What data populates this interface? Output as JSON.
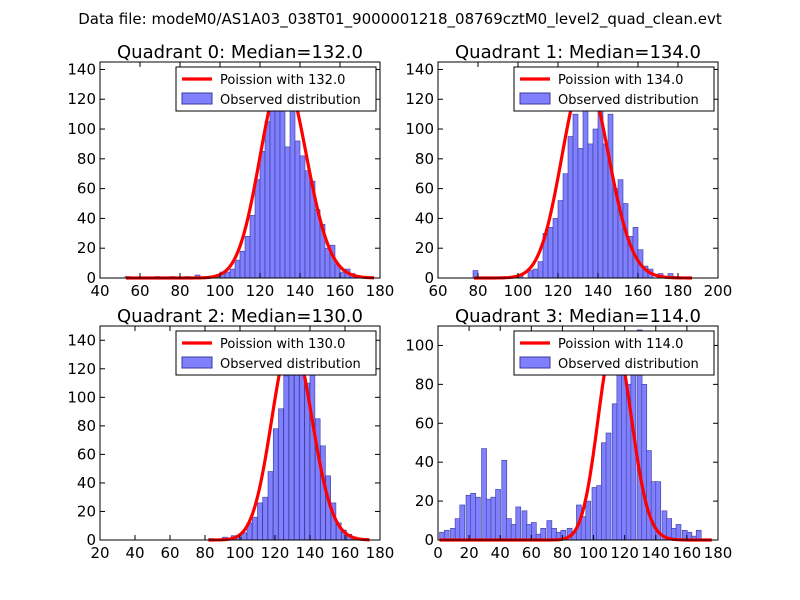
{
  "suptitle": "Data file: modeM0/AS1A03_038T01_9000001218_08769cztM0_level2_quad_clean.evt",
  "colors": {
    "bar_fill": "#8080ff",
    "bar_edge": "#3a3a9a",
    "poisson_line": "#ff0000",
    "legend_edge": "#000000"
  },
  "chart_data": [
    {
      "type": "bar",
      "title": "Quadrant 0: Median=132.0",
      "legend": [
        "Poission with 132.0",
        "Observed distribution"
      ],
      "xlim": [
        40,
        180
      ],
      "ylim": [
        0,
        145
      ],
      "xticks": [
        40,
        60,
        80,
        100,
        120,
        140,
        160,
        180
      ],
      "yticks": [
        0,
        20,
        40,
        60,
        80,
        100,
        120,
        140
      ],
      "median": 132.0,
      "bin_width": 2.5,
      "bins": [
        [
          52.5,
          1
        ],
        [
          67.5,
          1
        ],
        [
          75,
          1
        ],
        [
          82.5,
          1
        ],
        [
          87.5,
          2
        ],
        [
          97.5,
          2
        ],
        [
          100,
          4
        ],
        [
          102.5,
          4
        ],
        [
          105,
          6
        ],
        [
          107.5,
          12
        ],
        [
          110,
          18
        ],
        [
          112.5,
          28
        ],
        [
          115,
          42
        ],
        [
          117.5,
          66
        ],
        [
          120,
          85
        ],
        [
          122.5,
          105
        ],
        [
          125,
          118
        ],
        [
          127.5,
          112
        ],
        [
          130,
          118
        ],
        [
          132.5,
          88
        ],
        [
          135,
          115
        ],
        [
          137.5,
          92
        ],
        [
          140,
          82
        ],
        [
          142.5,
          72
        ],
        [
          145,
          65
        ],
        [
          147.5,
          46
        ],
        [
          150,
          36
        ],
        [
          152.5,
          20
        ],
        [
          155,
          22
        ],
        [
          157.5,
          9
        ],
        [
          160,
          4
        ],
        [
          162.5,
          6
        ],
        [
          165,
          3
        ],
        [
          167.5,
          1
        ]
      ]
    },
    {
      "type": "bar",
      "title": "Quadrant 1: Median=134.0",
      "legend": [
        "Poission with 134.0",
        "Observed distribution"
      ],
      "xlim": [
        60,
        200
      ],
      "ylim": [
        0,
        145
      ],
      "xticks": [
        60,
        80,
        100,
        120,
        140,
        160,
        180,
        200
      ],
      "yticks": [
        0,
        20,
        40,
        60,
        80,
        100,
        120,
        140
      ],
      "median": 134.0,
      "bin_width": 2.5,
      "bins": [
        [
          77.5,
          5
        ],
        [
          100,
          2
        ],
        [
          105,
          5
        ],
        [
          107.5,
          6
        ],
        [
          110,
          11
        ],
        [
          112.5,
          30
        ],
        [
          115,
          34
        ],
        [
          117.5,
          40
        ],
        [
          120,
          52
        ],
        [
          122.5,
          70
        ],
        [
          125,
          95
        ],
        [
          127.5,
          110
        ],
        [
          130,
          87
        ],
        [
          132.5,
          124
        ],
        [
          135,
          90
        ],
        [
          137.5,
          100
        ],
        [
          140,
          126
        ],
        [
          142.5,
          90
        ],
        [
          145,
          110
        ],
        [
          147.5,
          60
        ],
        [
          150,
          66
        ],
        [
          152.5,
          50
        ],
        [
          155,
          28
        ],
        [
          157.5,
          34
        ],
        [
          160,
          19
        ],
        [
          162.5,
          8
        ],
        [
          165,
          6
        ],
        [
          170,
          3
        ],
        [
          175,
          3
        ],
        [
          177.5,
          1
        ]
      ]
    },
    {
      "type": "bar",
      "title": "Quadrant 2: Median=130.0",
      "legend": [
        "Poission with 130.0",
        "Observed distribution"
      ],
      "xlim": [
        20,
        180
      ],
      "ylim": [
        0,
        150
      ],
      "xticks": [
        20,
        40,
        60,
        80,
        100,
        120,
        140,
        160,
        180
      ],
      "yticks": [
        0,
        20,
        40,
        60,
        80,
        100,
        120,
        140
      ],
      "median": 130.0,
      "bin_width": 2.8,
      "bins": [
        [
          82,
          1
        ],
        [
          90,
          2
        ],
        [
          95,
          3
        ],
        [
          98,
          2
        ],
        [
          101,
          5
        ],
        [
          104,
          12
        ],
        [
          107,
          16
        ],
        [
          110,
          26
        ],
        [
          113,
          30
        ],
        [
          116,
          48
        ],
        [
          119,
          78
        ],
        [
          122,
          92
        ],
        [
          125,
          115
        ],
        [
          128,
          138
        ],
        [
          131,
          132
        ],
        [
          134,
          140
        ],
        [
          137,
          110
        ],
        [
          140,
          125
        ],
        [
          143,
          85
        ],
        [
          146,
          66
        ],
        [
          149,
          45
        ],
        [
          152,
          26
        ],
        [
          155,
          12
        ],
        [
          158,
          7
        ],
        [
          161,
          4
        ],
        [
          164,
          2
        ]
      ]
    },
    {
      "type": "bar",
      "title": "Quadrant 3: Median=114.0",
      "legend": [
        "Poission with 114.0",
        "Observed distribution"
      ],
      "xlim": [
        0,
        180
      ],
      "ylim": [
        0,
        110
      ],
      "xticks": [
        0,
        20,
        40,
        60,
        80,
        100,
        120,
        140,
        160,
        180
      ],
      "yticks": [
        0,
        20,
        40,
        60,
        80,
        100
      ],
      "median": 114.0,
      "bin_width": 3.2,
      "bins": [
        [
          1,
          4
        ],
        [
          4,
          5
        ],
        [
          8,
          6
        ],
        [
          11,
          11
        ],
        [
          14,
          18
        ],
        [
          18,
          23
        ],
        [
          21,
          24
        ],
        [
          24,
          22
        ],
        [
          28,
          47
        ],
        [
          31,
          21
        ],
        [
          34,
          22
        ],
        [
          37,
          26
        ],
        [
          41,
          41
        ],
        [
          44,
          11
        ],
        [
          47,
          8
        ],
        [
          50,
          17
        ],
        [
          54,
          15
        ],
        [
          57,
          8
        ],
        [
          60,
          9
        ],
        [
          63,
          3
        ],
        [
          66,
          6
        ],
        [
          70,
          10
        ],
        [
          73,
          6
        ],
        [
          76,
          4
        ],
        [
          79,
          5
        ],
        [
          83,
          6
        ],
        [
          86,
          4
        ],
        [
          89,
          18
        ],
        [
          92,
          12
        ],
        [
          95,
          20
        ],
        [
          99,
          27
        ],
        [
          102,
          28
        ],
        [
          105,
          50
        ],
        [
          108,
          55
        ],
        [
          112,
          70
        ],
        [
          115,
          98
        ],
        [
          118,
          107
        ],
        [
          121,
          80
        ],
        [
          124,
          88
        ],
        [
          128,
          108
        ],
        [
          131,
          80
        ],
        [
          134,
          46
        ],
        [
          137,
          30
        ],
        [
          140,
          30
        ],
        [
          144,
          15
        ],
        [
          147,
          11
        ],
        [
          150,
          6
        ],
        [
          153,
          8
        ],
        [
          157,
          5
        ],
        [
          160,
          4
        ],
        [
          163,
          2
        ],
        [
          166,
          5
        ]
      ]
    }
  ]
}
